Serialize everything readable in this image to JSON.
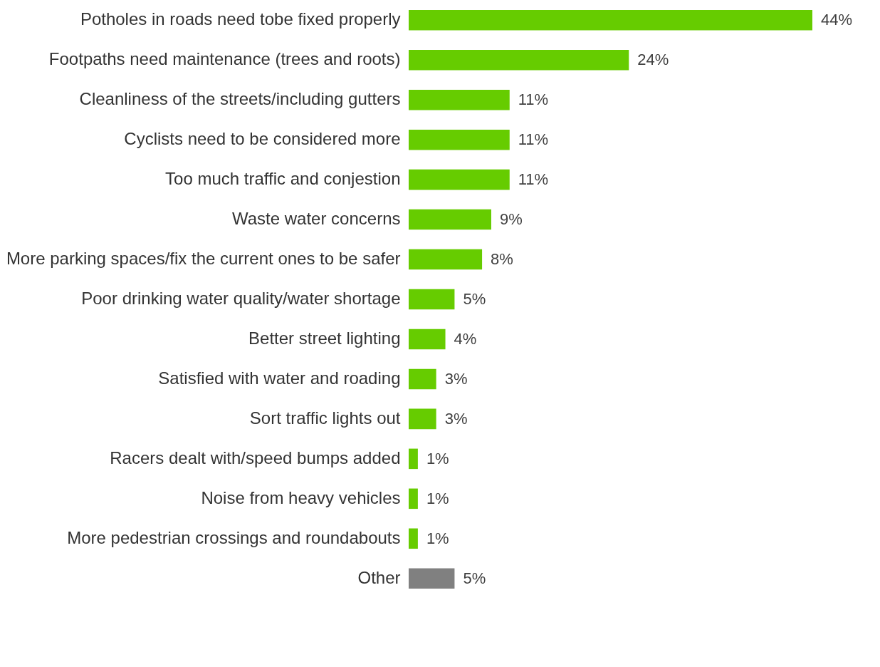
{
  "chart_data": {
    "type": "bar",
    "orientation": "horizontal",
    "categories": [
      "Potholes in roads need tobe fixed properly",
      "Footpaths need maintenance (trees and roots)",
      "Cleanliness of the streets/including gutters",
      "Cyclists need to be considered more",
      "Too much traffic and conjestion",
      "Waste water concerns",
      "More parking spaces/fix the current ones to be safer",
      "Poor drinking water quality/water shortage",
      "Better street lighting",
      "Satisfied with water and roading",
      "Sort traffic lights out",
      "Racers dealt with/speed bumps added",
      "Noise from heavy vehicles",
      "More pedestrian crossings and roundabouts",
      "Other"
    ],
    "values": [
      44,
      24,
      11,
      11,
      11,
      9,
      8,
      5,
      4,
      3,
      3,
      1,
      1,
      1,
      5
    ],
    "value_labels": [
      "44%",
      "24%",
      "11%",
      "11%",
      "11%",
      "9%",
      "8%",
      "5%",
      "4%",
      "3%",
      "3%",
      "1%",
      "1%",
      "1%",
      "5%"
    ],
    "colors": [
      "#66cc00",
      "#66cc00",
      "#66cc00",
      "#66cc00",
      "#66cc00",
      "#66cc00",
      "#66cc00",
      "#66cc00",
      "#66cc00",
      "#66cc00",
      "#66cc00",
      "#66cc00",
      "#66cc00",
      "#66cc00",
      "#808080"
    ]
  }
}
